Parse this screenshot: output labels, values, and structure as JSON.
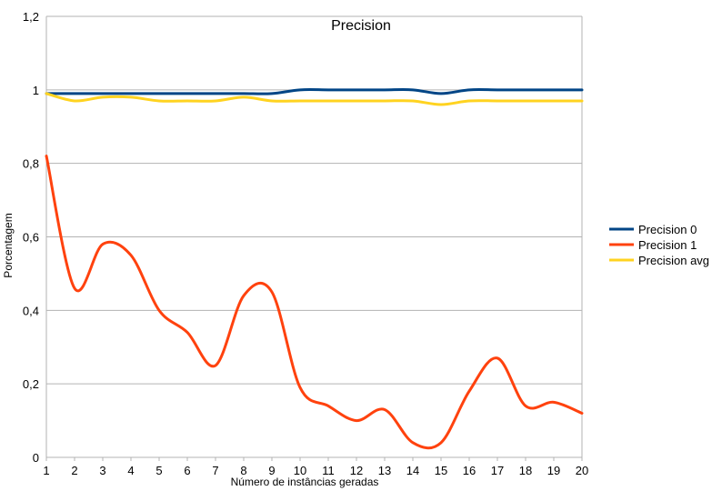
{
  "chart_data": {
    "type": "line",
    "title": "Precision",
    "xlabel": "Número de instâncias geradas",
    "ylabel": "Porcentagem",
    "x": [
      1,
      2,
      3,
      4,
      5,
      6,
      7,
      8,
      9,
      10,
      11,
      12,
      13,
      14,
      15,
      16,
      17,
      18,
      19,
      20
    ],
    "xlim": [
      1,
      20
    ],
    "ylim": [
      0,
      1.2
    ],
    "y_ticks": [
      0,
      0.2,
      0.4,
      0.6,
      0.8,
      1,
      1.2
    ],
    "y_tick_labels": [
      "0",
      "0,2",
      "0,4",
      "0,6",
      "0,8",
      "1",
      "1,2"
    ],
    "grid": "horizontal",
    "legend_position": "right",
    "series": [
      {
        "name": "Precision 0",
        "color": "#004586",
        "values": [
          0.99,
          0.99,
          0.99,
          0.99,
          0.99,
          0.99,
          0.99,
          0.99,
          0.99,
          1.0,
          1.0,
          1.0,
          1.0,
          1.0,
          0.99,
          1.0,
          1.0,
          1.0,
          1.0,
          1.0
        ]
      },
      {
        "name": "Precision 1",
        "color": "#ff420e",
        "values": [
          0.82,
          0.46,
          0.58,
          0.55,
          0.4,
          0.34,
          0.25,
          0.44,
          0.45,
          0.19,
          0.14,
          0.1,
          0.13,
          0.04,
          0.04,
          0.18,
          0.27,
          0.14,
          0.15,
          0.12
        ]
      },
      {
        "name": "Precision avg",
        "color": "#ffd320",
        "values": [
          0.99,
          0.97,
          0.98,
          0.98,
          0.97,
          0.97,
          0.97,
          0.98,
          0.97,
          0.97,
          0.97,
          0.97,
          0.97,
          0.97,
          0.96,
          0.97,
          0.97,
          0.97,
          0.97,
          0.97
        ]
      }
    ]
  }
}
